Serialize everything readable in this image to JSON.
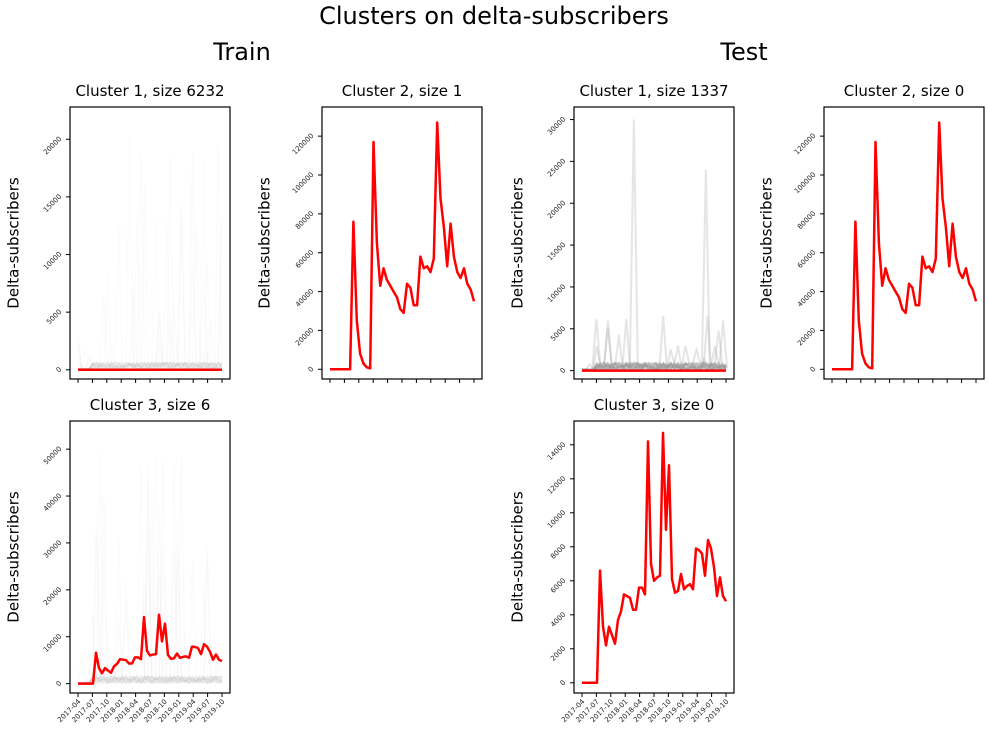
{
  "figure": {
    "title": "Clusters on delta-subscribers",
    "groups": [
      "Train",
      "Test"
    ]
  },
  "chart_data": [
    {
      "type": "line",
      "group": "Train",
      "title": "Cluster 1, size 6232",
      "ylabel": "Delta-subscribers",
      "yticks": [
        0,
        5000,
        10000,
        15000,
        20000
      ],
      "ylim": [
        -800,
        22800
      ],
      "background_series": "faint gray member series up to about 21000",
      "centroid": [
        0,
        0,
        0,
        0,
        0,
        0,
        0,
        0,
        0,
        0,
        0,
        0,
        0,
        0,
        0,
        0,
        0,
        0,
        0,
        0,
        0,
        0,
        0,
        0,
        0,
        0,
        0,
        0,
        0,
        0,
        0
      ]
    },
    {
      "type": "line",
      "group": "Train",
      "title": "Cluster 2, size 1",
      "ylabel": "Delta-subscribers",
      "yticks": [
        0,
        20000,
        40000,
        60000,
        80000,
        100000,
        120000
      ],
      "ylim": [
        -5000,
        135000
      ],
      "centroid": [
        0,
        0,
        0,
        0,
        0,
        0,
        0,
        76000,
        25000,
        8000,
        3000,
        1000,
        500,
        117000,
        65000,
        43000,
        52000,
        46000,
        43000,
        40000,
        37000,
        31000,
        29000,
        44000,
        42000,
        33000,
        33000,
        58000,
        52000,
        53000,
        50000,
        57000,
        127000,
        88000,
        73000,
        53000,
        75000,
        58000,
        50000,
        47000,
        52000,
        44000,
        41000,
        35000
      ]
    },
    {
      "type": "line",
      "group": "Train",
      "title": "Cluster 3, size 6",
      "ylabel": "Delta-subscribers",
      "yticks": [
        0,
        10000,
        20000,
        30000,
        40000,
        50000
      ],
      "ylim": [
        -2000,
        56000
      ],
      "xticks": [
        "2017-04",
        "2017-07",
        "2017-10",
        "2018-01",
        "2018-04",
        "2018-07",
        "2018-10",
        "2019-01",
        "2019-04",
        "2019-07",
        "2019-10"
      ],
      "background_series": "faint gray member series up to about 51000",
      "centroid": [
        0,
        0,
        0,
        0,
        0,
        0,
        6600,
        3300,
        2200,
        3300,
        2800,
        2300,
        3700,
        4200,
        5200,
        5100,
        5000,
        4300,
        4300,
        5600,
        5600,
        5200,
        14200,
        7000,
        6000,
        6200,
        6300,
        14700,
        9000,
        12800,
        6100,
        5300,
        5400,
        6400,
        5500,
        5700,
        5800,
        5500,
        7900,
        7800,
        7600,
        6300,
        8400,
        7900,
        6800,
        5100,
        6200,
        5100,
        4800
      ]
    },
    {
      "type": "line",
      "group": "Test",
      "title": "Cluster 1, size 1337",
      "ylabel": "Delta-subscribers",
      "yticks": [
        0,
        5000,
        10000,
        15000,
        20000,
        25000,
        30000
      ],
      "ylim": [
        -1000,
        31500
      ],
      "background_series": "light gray member series with spikes near 30000 and 24000",
      "centroid": [
        0,
        0,
        0,
        0,
        0,
        0,
        0,
        0,
        0,
        0,
        0,
        0,
        0,
        0,
        0,
        0,
        0,
        0,
        0,
        0,
        0,
        0,
        0,
        0,
        0,
        0,
        0,
        0,
        0,
        0,
        0
      ]
    },
    {
      "type": "line",
      "group": "Test",
      "title": "Cluster 2, size 0",
      "ylabel": "Delta-subscribers",
      "yticks": [
        0,
        20000,
        40000,
        60000,
        80000,
        100000,
        120000
      ],
      "ylim": [
        -5000,
        135000
      ],
      "centroid": [
        0,
        0,
        0,
        0,
        0,
        0,
        0,
        76000,
        25000,
        8000,
        3000,
        1000,
        500,
        117000,
        65000,
        43000,
        52000,
        46000,
        43000,
        40000,
        37000,
        31000,
        29000,
        44000,
        42000,
        33000,
        33000,
        58000,
        52000,
        53000,
        50000,
        57000,
        127000,
        88000,
        73000,
        53000,
        75000,
        58000,
        50000,
        47000,
        52000,
        44000,
        41000,
        35000
      ]
    },
    {
      "type": "line",
      "group": "Test",
      "title": "Cluster 3, size 0",
      "ylabel": "Delta-subscribers",
      "yticks": [
        0,
        2000,
        4000,
        6000,
        8000,
        10000,
        12000,
        14000
      ],
      "ylim": [
        -600,
        15400
      ],
      "xticks": [
        "2017-04",
        "2017-07",
        "2017-10",
        "2018-01",
        "2018-04",
        "2018-07",
        "2018-10",
        "2019-01",
        "2019-04",
        "2019-07",
        "2019-10"
      ],
      "centroid": [
        0,
        0,
        0,
        0,
        0,
        0,
        6600,
        3300,
        2200,
        3300,
        2800,
        2300,
        3700,
        4200,
        5200,
        5100,
        5000,
        4300,
        4300,
        5600,
        5600,
        5200,
        14200,
        7000,
        6000,
        6200,
        6300,
        14700,
        9000,
        12800,
        6100,
        5300,
        5400,
        6400,
        5500,
        5700,
        5800,
        5500,
        7900,
        7800,
        7600,
        6300,
        8400,
        7900,
        6800,
        5100,
        6200,
        5100,
        4800
      ]
    }
  ]
}
